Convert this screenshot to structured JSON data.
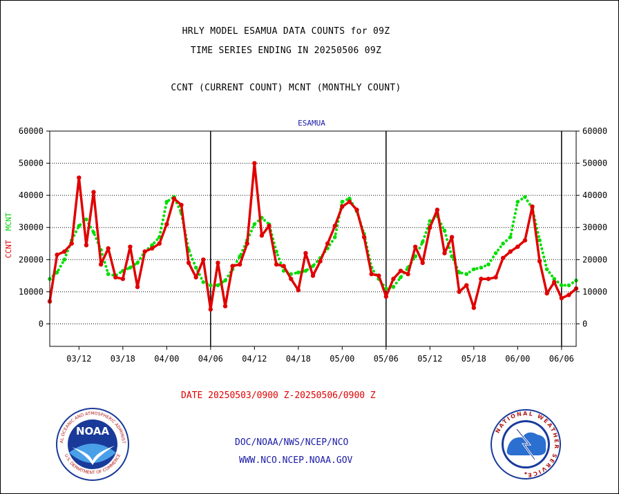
{
  "titles": {
    "line1": "HRLY MODEL ESAMUA DATA COUNTS for 09Z",
    "line2": "TIME SERIES ENDING IN 20250506 09Z",
    "line3": "CCNT (CURRENT COUNT) MCNT (MONTHLY COUNT)"
  },
  "station": "ESAMUA",
  "y_axis_label": {
    "ccnt": "CCNT",
    "mcnt": "MCNT"
  },
  "date_range": "DATE 20250503/0900 Z-20250506/0900 Z",
  "credits": {
    "line1": "DOC/NOAA/NWS/NCEP/NCO",
    "line2": "WWW.NCO.NCEP.NOAA.GOV"
  },
  "logos": {
    "noaa": {
      "name": "NOAA",
      "ring_text": "NATIONAL OCEANIC AND ATMOSPHERIC ADMINISTRATION",
      "bottom_text": "U.S. DEPARTMENT OF COMMERCE"
    },
    "nws": {
      "ring_text": "NATIONAL WEATHER SERVICE"
    }
  },
  "colors": {
    "ccnt": "#e00000",
    "mcnt": "#00dd00",
    "text_blue": "#1a1aa8"
  },
  "chart_data": {
    "type": "line",
    "ylim": [
      -7000,
      60000
    ],
    "yticks": [
      0,
      10000,
      20000,
      30000,
      40000,
      50000,
      60000
    ],
    "xlim": [
      0,
      72
    ],
    "xticks": [
      {
        "x": 4,
        "label": "03/12"
      },
      {
        "x": 10,
        "label": "03/18"
      },
      {
        "x": 16,
        "label": "04/00"
      },
      {
        "x": 22,
        "label": "04/06"
      },
      {
        "x": 28,
        "label": "04/12"
      },
      {
        "x": 34,
        "label": "04/18"
      },
      {
        "x": 40,
        "label": "05/00"
      },
      {
        "x": 46,
        "label": "05/06"
      },
      {
        "x": 52,
        "label": "05/12"
      },
      {
        "x": 58,
        "label": "05/18"
      },
      {
        "x": 64,
        "label": "06/00"
      },
      {
        "x": 70,
        "label": "06/06"
      }
    ],
    "day_separators": [
      22,
      46,
      70
    ],
    "grid": "horizontal dotted",
    "series": [
      {
        "name": "CCNT",
        "color": "#e00000",
        "values": [
          7000,
          21500,
          22500,
          25000,
          45500,
          24500,
          41000,
          18500,
          23500,
          14500,
          14000,
          24000,
          11500,
          22500,
          23500,
          25000,
          31000,
          39000,
          37000,
          19000,
          14500,
          20000,
          4500,
          19000,
          5500,
          18000,
          18500,
          25000,
          50000,
          27500,
          30500,
          18500,
          18000,
          14000,
          10500,
          22000,
          15000,
          19500,
          25000,
          30500,
          36500,
          38000,
          35500,
          27000,
          15500,
          15000,
          8500,
          14000,
          16500,
          15500,
          24000,
          19000,
          30000,
          35500,
          22000,
          27000,
          10000,
          12000,
          5000,
          14000,
          14000,
          14500,
          20500,
          22500,
          24000,
          26000,
          36500,
          19500,
          9500,
          13000,
          8000,
          9000,
          11000
        ]
      },
      {
        "name": "MCNT",
        "color": "#00dd00",
        "values": [
          14000,
          16000,
          20000,
          26000,
          30500,
          32500,
          28500,
          23000,
          15500,
          15000,
          16500,
          17500,
          19000,
          22500,
          24500,
          27000,
          38000,
          39500,
          34500,
          23000,
          17500,
          13000,
          12000,
          12000,
          13500,
          17000,
          21000,
          26000,
          31000,
          33000,
          31000,
          22500,
          16500,
          15500,
          16000,
          16500,
          18000,
          20500,
          23500,
          27000,
          38000,
          39000,
          35000,
          28000,
          17500,
          14000,
          11000,
          11500,
          14500,
          17500,
          21000,
          25500,
          32000,
          33500,
          29000,
          21000,
          16000,
          15500,
          17000,
          17500,
          18500,
          22000,
          25000,
          27000,
          38000,
          39500,
          36000,
          26000,
          17000,
          14000,
          12000,
          12000,
          13500
        ]
      }
    ]
  }
}
